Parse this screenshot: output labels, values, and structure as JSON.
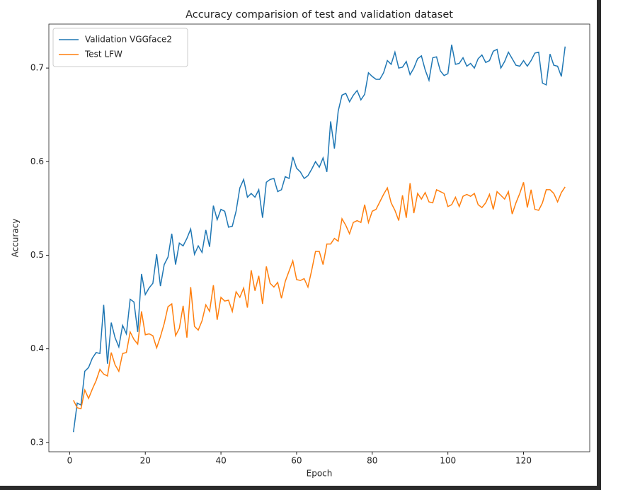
{
  "chart_data": {
    "type": "line",
    "title": "Accuracy comparision of test and validation dataset",
    "x_label": "Epoch",
    "y_label": "Accuracy",
    "x": [
      1,
      2,
      3,
      4,
      5,
      6,
      7,
      8,
      9,
      10,
      11,
      12,
      13,
      14,
      15,
      16,
      17,
      18,
      19,
      20,
      21,
      22,
      23,
      24,
      25,
      26,
      27,
      28,
      29,
      30,
      31,
      32,
      33,
      34,
      35,
      36,
      37,
      38,
      39,
      40,
      41,
      42,
      43,
      44,
      45,
      46,
      47,
      48,
      49,
      50,
      51,
      52,
      53,
      54,
      55,
      56,
      57,
      58,
      59,
      60,
      61,
      62,
      63,
      64,
      65,
      66,
      67,
      68,
      69,
      70,
      71,
      72,
      73,
      74,
      75,
      76,
      77,
      78,
      79,
      80,
      81,
      82,
      83,
      84,
      85,
      86,
      87,
      88,
      89,
      90,
      91,
      92,
      93,
      94,
      95,
      96,
      97,
      98,
      99,
      100,
      101,
      102,
      103,
      104,
      105,
      106,
      107,
      108,
      109,
      110,
      111,
      112,
      113,
      114,
      115,
      116,
      117,
      118,
      119,
      120,
      121,
      122,
      123,
      124,
      125,
      126,
      127,
      128,
      129,
      130,
      131
    ],
    "series": [
      {
        "name": "Validation VGGface2",
        "color": "#1f77b4",
        "values": [
          0.311,
          0.342,
          0.34,
          0.376,
          0.38,
          0.39,
          0.396,
          0.395,
          0.447,
          0.384,
          0.428,
          0.412,
          0.402,
          0.425,
          0.416,
          0.453,
          0.45,
          0.418,
          0.48,
          0.458,
          0.465,
          0.47,
          0.501,
          0.467,
          0.49,
          0.498,
          0.523,
          0.49,
          0.513,
          0.51,
          0.518,
          0.528,
          0.501,
          0.51,
          0.503,
          0.527,
          0.509,
          0.553,
          0.538,
          0.549,
          0.547,
          0.53,
          0.531,
          0.547,
          0.572,
          0.581,
          0.562,
          0.566,
          0.562,
          0.57,
          0.54,
          0.578,
          0.581,
          0.582,
          0.568,
          0.57,
          0.584,
          0.582,
          0.605,
          0.593,
          0.589,
          0.582,
          0.585,
          0.592,
          0.6,
          0.594,
          0.604,
          0.589,
          0.643,
          0.614,
          0.654,
          0.671,
          0.673,
          0.664,
          0.671,
          0.676,
          0.666,
          0.672,
          0.695,
          0.691,
          0.688,
          0.688,
          0.695,
          0.708,
          0.704,
          0.717,
          0.7,
          0.701,
          0.707,
          0.693,
          0.7,
          0.71,
          0.713,
          0.698,
          0.687,
          0.711,
          0.712,
          0.697,
          0.692,
          0.694,
          0.725,
          0.704,
          0.705,
          0.711,
          0.702,
          0.705,
          0.7,
          0.71,
          0.714,
          0.706,
          0.708,
          0.718,
          0.72,
          0.7,
          0.707,
          0.717,
          0.71,
          0.703,
          0.702,
          0.708,
          0.702,
          0.708,
          0.716,
          0.717,
          0.684,
          0.682,
          0.715,
          0.703,
          0.702,
          0.691,
          0.723
        ]
      },
      {
        "name": "Test LFW",
        "color": "#ff7f0e",
        "values": [
          0.345,
          0.337,
          0.336,
          0.356,
          0.347,
          0.357,
          0.366,
          0.378,
          0.373,
          0.371,
          0.396,
          0.383,
          0.376,
          0.395,
          0.396,
          0.418,
          0.41,
          0.405,
          0.44,
          0.415,
          0.416,
          0.414,
          0.401,
          0.413,
          0.427,
          0.445,
          0.448,
          0.414,
          0.422,
          0.446,
          0.412,
          0.466,
          0.424,
          0.42,
          0.43,
          0.447,
          0.44,
          0.468,
          0.431,
          0.455,
          0.451,
          0.452,
          0.44,
          0.461,
          0.455,
          0.465,
          0.444,
          0.484,
          0.462,
          0.478,
          0.448,
          0.488,
          0.47,
          0.466,
          0.471,
          0.454,
          0.472,
          0.483,
          0.494,
          0.474,
          0.473,
          0.475,
          0.466,
          0.484,
          0.504,
          0.504,
          0.49,
          0.512,
          0.512,
          0.518,
          0.515,
          0.539,
          0.532,
          0.523,
          0.535,
          0.537,
          0.535,
          0.554,
          0.535,
          0.547,
          0.549,
          0.557,
          0.565,
          0.572,
          0.556,
          0.548,
          0.537,
          0.564,
          0.54,
          0.577,
          0.545,
          0.566,
          0.56,
          0.567,
          0.557,
          0.556,
          0.57,
          0.568,
          0.566,
          0.552,
          0.554,
          0.562,
          0.552,
          0.563,
          0.565,
          0.563,
          0.566,
          0.554,
          0.551,
          0.556,
          0.565,
          0.549,
          0.568,
          0.564,
          0.56,
          0.568,
          0.544,
          0.556,
          0.566,
          0.578,
          0.551,
          0.57,
          0.549,
          0.548,
          0.556,
          0.57,
          0.57,
          0.566,
          0.557,
          0.567,
          0.573
        ]
      }
    ],
    "xlim": [
      -5.5,
      137.5
    ],
    "ylim": [
      0.29,
      0.747
    ],
    "xticks": [
      0,
      20,
      40,
      60,
      80,
      100,
      120
    ],
    "yticks": [
      0.3,
      0.4,
      0.5,
      0.6,
      0.7
    ],
    "legend": "upper left"
  }
}
